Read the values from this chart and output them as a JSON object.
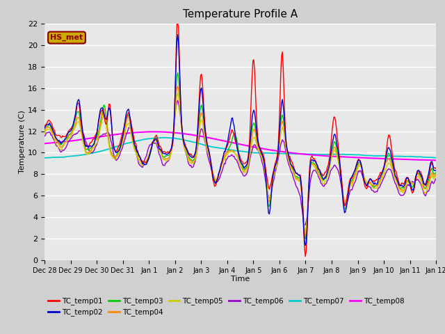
{
  "title": "Temperature Profile A",
  "xlabel": "Time",
  "ylabel": "Temperature (C)",
  "ylim": [
    0,
    22
  ],
  "fig_facecolor": "#d0d0d0",
  "ax_facecolor": "#e8e8e8",
  "annotation_text": "HS_met",
  "annotation_color": "#8b0000",
  "annotation_bg": "#ccaa00",
  "legend_entries": [
    "TC_temp01",
    "TC_temp02",
    "TC_temp03",
    "TC_temp04",
    "TC_temp05",
    "TC_temp06",
    "TC_temp07",
    "TC_temp08"
  ],
  "line_colors": [
    "#ff0000",
    "#0000cc",
    "#00cc00",
    "#ff8800",
    "#cccc00",
    "#9900cc",
    "#00cccc",
    "#ff00ff"
  ],
  "x_tick_labels": [
    "Dec 28",
    "Dec 29",
    "Dec 30",
    "Dec 31",
    "Jan 1",
    "Jan 2",
    "Jan 3",
    "Jan 4",
    "Jan 5",
    "Jan 6",
    "Jan 7",
    "Jan 8",
    "Jan 9",
    "Jan 10",
    "Jan 11",
    "Jan 12"
  ],
  "n_points": 480,
  "n_days": 15
}
